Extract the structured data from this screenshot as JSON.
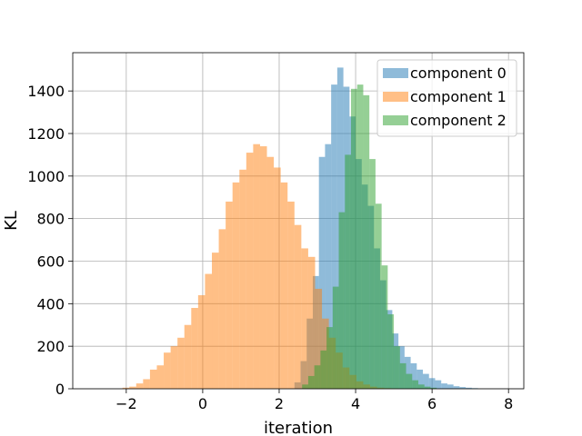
{
  "chart_data": {
    "type": "bar",
    "subtype": "overlapping-histogram",
    "xlabel": "iteration",
    "ylabel": "KL",
    "xlim": [
      -3.4,
      8.4
    ],
    "ylim": [
      0,
      1580
    ],
    "xticks": [
      -2,
      0,
      2,
      4,
      6,
      8
    ],
    "xtick_labels": [
      "−2",
      "0",
      "2",
      "4",
      "6",
      "8"
    ],
    "yticks": [
      0,
      200,
      400,
      600,
      800,
      1000,
      1200,
      1400
    ],
    "grid": true,
    "legend_position": "top-right",
    "series": [
      {
        "name": "component 0",
        "color": "#1f77b4",
        "opacity": 0.5,
        "bin_edges": [
          2.4,
          2.56,
          2.72,
          2.88,
          3.04,
          3.2,
          3.36,
          3.52,
          3.68,
          3.84,
          4.0,
          4.16,
          4.32,
          4.48,
          4.64,
          4.8,
          4.96,
          5.12,
          5.28,
          5.44,
          5.6,
          5.76,
          5.92,
          6.08,
          6.24,
          6.4,
          6.56,
          6.72,
          6.88,
          7.04,
          7.2
        ],
        "counts": [
          30,
          130,
          330,
          530,
          1090,
          1150,
          1430,
          1510,
          1420,
          1280,
          1080,
          960,
          860,
          660,
          510,
          370,
          260,
          200,
          150,
          120,
          90,
          70,
          50,
          40,
          25,
          20,
          12,
          8,
          5,
          3
        ]
      },
      {
        "name": "component 1",
        "color": "#ff7f0e",
        "opacity": 0.5,
        "bin_edges": [
          -2.1,
          -1.92,
          -1.74,
          -1.56,
          -1.38,
          -1.2,
          -1.02,
          -0.84,
          -0.66,
          -0.48,
          -0.3,
          -0.12,
          0.06,
          0.24,
          0.42,
          0.6,
          0.78,
          0.96,
          1.14,
          1.32,
          1.5,
          1.68,
          1.86,
          2.04,
          2.22,
          2.4,
          2.58,
          2.76,
          2.94,
          3.12,
          3.3,
          3.48,
          3.66,
          3.84,
          4.02,
          4.2,
          4.38,
          4.56,
          4.74,
          4.92,
          5.1
        ],
        "counts": [
          5,
          10,
          25,
          45,
          90,
          110,
          170,
          200,
          240,
          300,
          380,
          440,
          540,
          640,
          750,
          880,
          970,
          1030,
          1110,
          1150,
          1140,
          1090,
          1040,
          970,
          880,
          770,
          660,
          620,
          470,
          330,
          240,
          170,
          100,
          65,
          35,
          20,
          10,
          5,
          3,
          2
        ]
      },
      {
        "name": "component 2",
        "color": "#2ca02c",
        "opacity": 0.5,
        "bin_edges": [
          2.6,
          2.76,
          2.92,
          3.08,
          3.24,
          3.4,
          3.56,
          3.72,
          3.88,
          4.04,
          4.2,
          4.36,
          4.52,
          4.68,
          4.84,
          5.0,
          5.16,
          5.32,
          5.48,
          5.64,
          5.8,
          5.96,
          6.12
        ],
        "counts": [
          20,
          60,
          110,
          180,
          290,
          480,
          830,
          1100,
          1410,
          1430,
          1380,
          1080,
          870,
          580,
          350,
          200,
          120,
          70,
          40,
          20,
          10,
          5
        ]
      }
    ]
  }
}
